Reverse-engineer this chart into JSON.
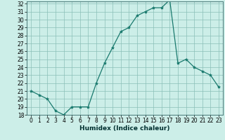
{
  "title": "",
  "xlabel": "Humidex (Indice chaleur)",
  "ylabel": "",
  "x": [
    0,
    1,
    2,
    3,
    4,
    5,
    6,
    7,
    8,
    9,
    10,
    11,
    12,
    13,
    14,
    15,
    16,
    17,
    18,
    19,
    20,
    21,
    22,
    23
  ],
  "y": [
    21.0,
    20.5,
    20.0,
    18.5,
    18.0,
    19.0,
    19.0,
    19.0,
    22.0,
    24.5,
    26.5,
    28.5,
    29.0,
    30.5,
    31.0,
    31.5,
    31.5,
    32.5,
    24.5,
    25.0,
    24.0,
    23.5,
    23.0,
    21.5
  ],
  "ylim": [
    18,
    32
  ],
  "xlim": [
    -0.5,
    23.5
  ],
  "line_color": "#1a7a6e",
  "marker": "*",
  "marker_size": 3,
  "bg_color": "#cceee8",
  "grid_color": "#8abfb8",
  "yticks": [
    18,
    19,
    20,
    21,
    22,
    23,
    24,
    25,
    26,
    27,
    28,
    29,
    30,
    31,
    32
  ],
  "xticks": [
    0,
    1,
    2,
    3,
    4,
    5,
    6,
    7,
    8,
    9,
    10,
    11,
    12,
    13,
    14,
    15,
    16,
    17,
    18,
    19,
    20,
    21,
    22,
    23
  ],
  "tick_fontsize": 5.5,
  "xlabel_fontsize": 6.5,
  "xlabel_fontweight": "bold"
}
